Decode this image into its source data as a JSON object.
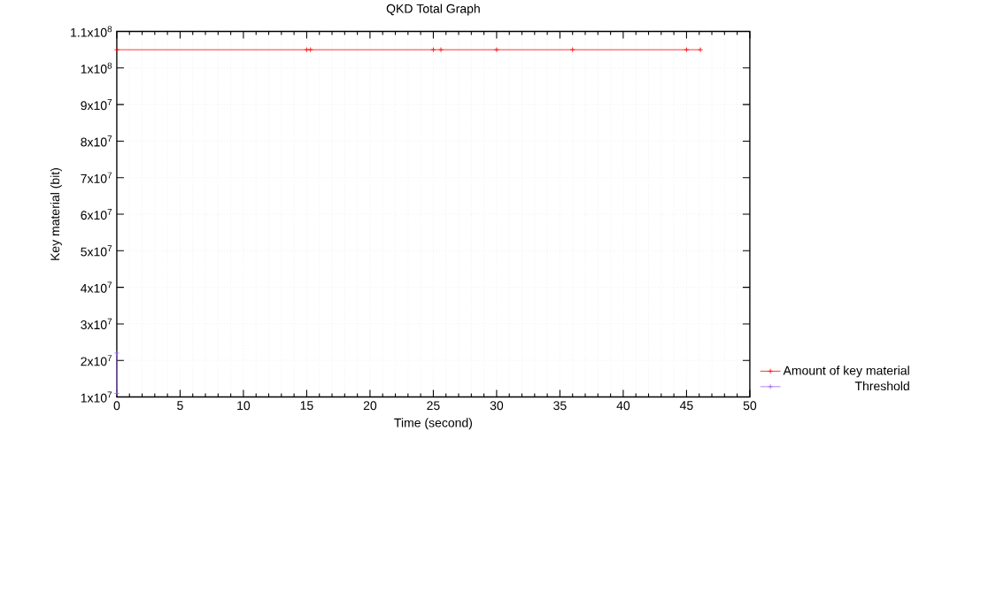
{
  "chart_data": {
    "type": "line",
    "title": "QKD Total Graph",
    "xlabel": "Time (second)",
    "ylabel": "Key material (bit)",
    "xlim": [
      0,
      50
    ],
    "xticks": [
      0,
      5,
      10,
      15,
      20,
      25,
      30,
      35,
      40,
      45,
      50
    ],
    "ylim": [
      10000000,
      110000000
    ],
    "yticks": [
      {
        "value": 10000000,
        "label": "1x10$^{7}$"
      },
      {
        "value": 20000000,
        "label": "2x10$^{7}$"
      },
      {
        "value": 30000000,
        "label": "3x10$^{7}$"
      },
      {
        "value": 40000000,
        "label": "4x10$^{7}$"
      },
      {
        "value": 50000000,
        "label": "5x10$^{7}$"
      },
      {
        "value": 60000000,
        "label": "6x10$^{7}$"
      },
      {
        "value": 70000000,
        "label": "7x10$^{7}$"
      },
      {
        "value": 80000000,
        "label": "8x10$^{7}$"
      },
      {
        "value": 90000000,
        "label": "9x10$^{7}$"
      },
      {
        "value": 100000000,
        "label": "1x10$^{8}$"
      },
      {
        "value": 110000000,
        "label": "1.1x10$^{8}$"
      }
    ],
    "grid": true,
    "legend": "right",
    "marker": "cross",
    "line_style": "solid",
    "series": [
      {
        "name": "Amount of key material",
        "color": "#ff0000",
        "x": [
          0,
          15,
          15.3,
          25,
          25.6,
          30,
          36,
          45,
          46.1
        ],
        "values": [
          105000000,
          105000000,
          105000000,
          105000000,
          105000000,
          105000000,
          105000000,
          105000000,
          105000000
        ]
      },
      {
        "name": "Threshold",
        "color": "#9966ee",
        "x": [
          0,
          0
        ],
        "values": [
          22000000,
          11000000
        ]
      }
    ]
  }
}
